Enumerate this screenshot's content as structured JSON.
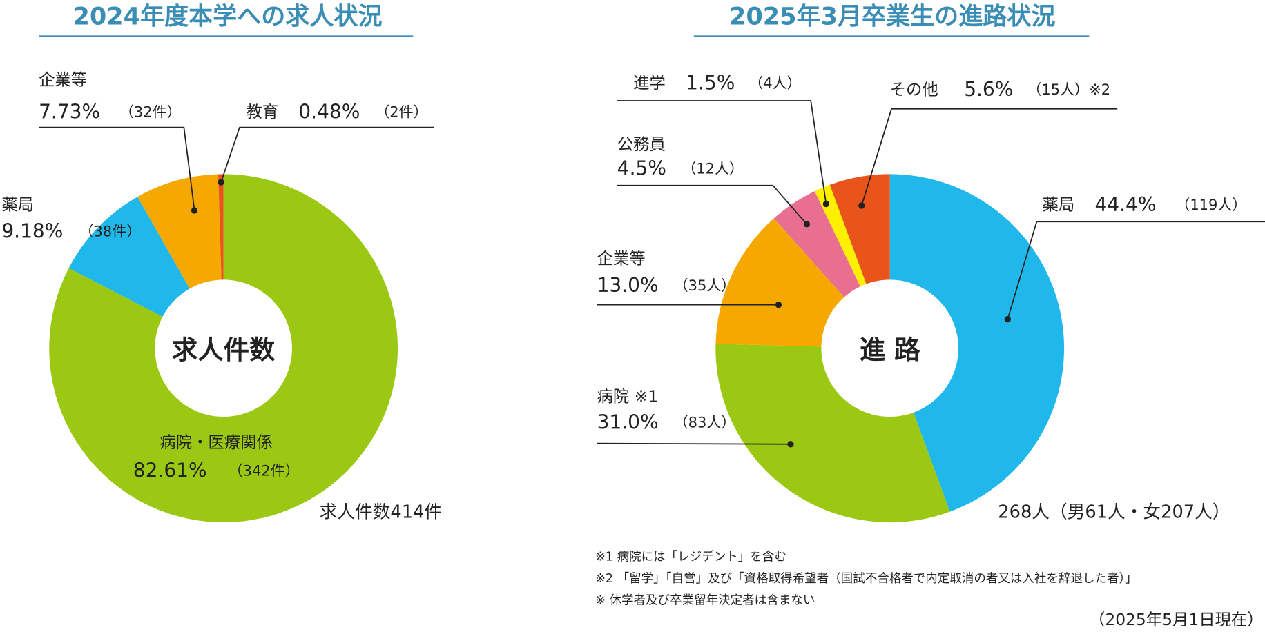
{
  "chart_data": [
    {
      "type": "donut",
      "title": "2024年度本学への求人状況",
      "center_label": "求人件数",
      "total_label": "求人件数414件",
      "categories": [
        "病院・医療関係",
        "薬局",
        "企業等",
        "教育"
      ],
      "values": [
        82.61,
        9.18,
        7.73,
        0.48
      ],
      "value_labels": [
        "82.61%",
        "9.18%",
        "7.73%",
        "0.48%"
      ],
      "count_labels": [
        "（342件）",
        "（38件）",
        "（32件）",
        "（2件）"
      ],
      "colors": [
        "#9bc813",
        "#20b8ea",
        "#f5a900",
        "#e8541a"
      ]
    },
    {
      "type": "donut",
      "title": "2025年3月卒業生の進路状況",
      "center_label": "進 路",
      "total_label": "268人（男61人・女207人）",
      "categories": [
        "薬局",
        "病院 ※1",
        "企業等",
        "公務員",
        "進学",
        "その他"
      ],
      "values": [
        44.4,
        31.0,
        13.0,
        4.5,
        1.5,
        5.6
      ],
      "value_labels": [
        "44.4%",
        "31.0%",
        "13.0%",
        "4.5%",
        "1.5%",
        "5.6%"
      ],
      "count_labels": [
        "（119人）",
        "（83人）",
        "（35人）",
        "（12人）",
        "（4人）",
        "（15人）※2"
      ],
      "colors": [
        "#20b8ea",
        "#9bc813",
        "#f5a900",
        "#e96f91",
        "#fff000",
        "#e8541a"
      ]
    }
  ],
  "notes": [
    "※1 病院には「レジデント」を含む",
    "※2 「留学」「自営」及び「資格取得希望者（国試不合格者で内定取消の者又は入社を辞退した者）」",
    "※ 休学者及び卒業留年決定者は含まない"
  ],
  "as_of": "（2025年5月1日現在）"
}
